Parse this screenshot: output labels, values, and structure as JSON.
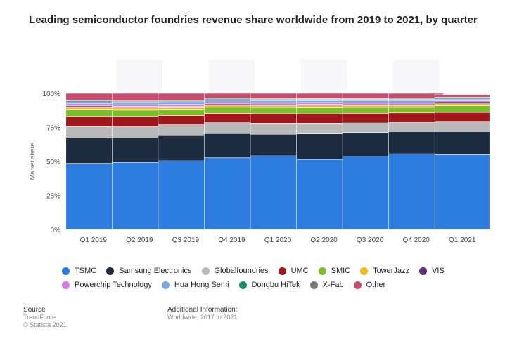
{
  "title": "Leading semiconductor foundries revenue share worldwide from 2019 to 2021, by quarter",
  "chart_data": {
    "type": "bar",
    "stacked": true,
    "ylabel": "Market share",
    "ylim": [
      0,
      100
    ],
    "yticks": [
      "0%",
      "25%",
      "50%",
      "75%",
      "100%"
    ],
    "grid": true,
    "legend_position": "bottom",
    "categories": [
      "Q1 2019",
      "Q2 2019",
      "Q3 2019",
      "Q4 2019",
      "Q1 2020",
      "Q2 2020",
      "Q3 2020",
      "Q4 2020",
      "Q1 2021"
    ],
    "series": [
      {
        "name": "TSMC",
        "color": "#2d7de0",
        "values": [
          48.1,
          49.2,
          50.5,
          52.7,
          54.1,
          51.5,
          53.9,
          55.6,
          55.0
        ]
      },
      {
        "name": "Samsung Electronics",
        "color": "#1c2b40",
        "values": [
          19.1,
          18.0,
          18.5,
          17.8,
          15.9,
          18.8,
          17.4,
          16.4,
          17.0
        ]
      },
      {
        "name": "Globalfoundries",
        "color": "#b9b9b9",
        "values": [
          8.4,
          8.3,
          8.0,
          8.0,
          7.7,
          7.4,
          7.0,
          6.6,
          7.0
        ]
      },
      {
        "name": "UMC",
        "color": "#a0161b",
        "values": [
          7.2,
          7.3,
          6.7,
          6.8,
          7.4,
          7.3,
          7.1,
          7.1,
          7.0
        ]
      },
      {
        "name": "SMIC",
        "color": "#7bbf2a",
        "values": [
          5.1,
          4.9,
          4.2,
          4.5,
          4.5,
          4.4,
          4.3,
          4.0,
          5.0
        ]
      },
      {
        "name": "TowerJazz",
        "color": "#f2b81b",
        "values": [
          1.8,
          1.7,
          1.6,
          1.5,
          1.4,
          1.5,
          1.4,
          1.4,
          1.4
        ]
      },
      {
        "name": "VIS",
        "color": "#5b2d7d",
        "values": [
          1.1,
          1.0,
          1.0,
          1.0,
          1.2,
          1.1,
          1.1,
          1.1,
          1.0
        ]
      },
      {
        "name": "Powerchip Technology",
        "color": "#d17ee0",
        "values": [
          1.6,
          1.3,
          1.4,
          1.4,
          1.2,
          1.3,
          1.3,
          1.3,
          1.3
        ]
      },
      {
        "name": "Hua Hong Semi",
        "color": "#7aa8e6",
        "values": [
          1.4,
          1.5,
          1.5,
          1.4,
          1.2,
          1.4,
          1.3,
          1.3,
          1.2
        ]
      },
      {
        "name": "Dongbu HiTek",
        "color": "#1a8c6e",
        "values": [
          0.7,
          0.7,
          0.8,
          0.8,
          0.9,
          0.9,
          0.8,
          0.9,
          0.7
        ]
      },
      {
        "name": "X-Fab",
        "color": "#7a7a7a",
        "values": [
          0.6,
          0.6,
          0.6,
          0.6,
          0.6,
          0.6,
          0.6,
          0.6,
          0.6
        ]
      },
      {
        "name": "Other",
        "color": "#c94b6d",
        "values": [
          4.9,
          5.5,
          5.2,
          3.5,
          3.9,
          3.8,
          3.8,
          3.7,
          1.8
        ]
      }
    ]
  },
  "source": {
    "label": "Source",
    "lines": [
      "TrendForce",
      "© Statista 2021"
    ]
  },
  "additional": {
    "label": "Additional Information:",
    "text": "Worldwide; 2017 to 2021"
  }
}
